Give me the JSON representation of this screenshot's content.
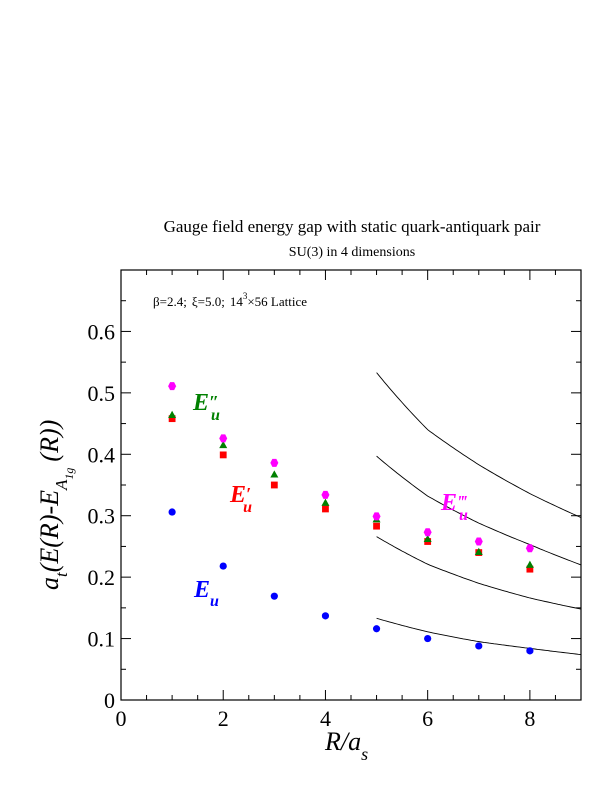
{
  "chart_data": {
    "type": "scatter",
    "title": "Gauge field energy gap with static quark-antiquark pair",
    "subtitle": "SU(3) in 4 dimensions",
    "annotation": {
      "beta": "β=2.4;",
      "xi": "ξ=5.0;",
      "lattice_base": "14",
      "lattice_exp": "3",
      "lattice_rest": "×56 Lattice"
    },
    "xlabel": {
      "main": "R/a",
      "sub": "s"
    },
    "ylabel": {
      "main": "a",
      "sub_t": "t",
      "mid": "(E(R)-E",
      "sub_a": "A",
      "sub_1g": "1g",
      "end": "(R))"
    },
    "xlim": [
      0,
      9
    ],
    "ylim": [
      0,
      0.7
    ],
    "x_ticks": [
      0,
      2,
      4,
      6,
      8
    ],
    "y_ticks": [
      0,
      0.1,
      0.2,
      0.3,
      0.4,
      0.5,
      0.6
    ],
    "x_tick_labels": [
      "0",
      "2",
      "4",
      "6",
      "8"
    ],
    "y_tick_labels": [
      "0",
      "0.1",
      "0.2",
      "0.3",
      "0.4",
      "0.5",
      "0.6"
    ],
    "grid": false,
    "series": [
      {
        "name": "E_u",
        "label_main": "E",
        "label_sub": "u",
        "label_prime": "",
        "color": "#0000ff",
        "marker": "circle",
        "x": [
          1,
          2,
          3,
          4,
          5,
          6,
          7,
          8
        ],
        "y": [
          0.306,
          0.218,
          0.169,
          0.137,
          0.116,
          0.1,
          0.088,
          0.08
        ]
      },
      {
        "name": "E'_u",
        "label_main": "E",
        "label_sub": "u",
        "label_prime": "′",
        "color": "#ff0000",
        "marker": "square",
        "x": [
          1,
          2,
          3,
          4,
          5,
          6,
          7,
          8
        ],
        "y": [
          0.458,
          0.399,
          0.35,
          0.311,
          0.283,
          0.258,
          0.24,
          0.213
        ]
      },
      {
        "name": "E''_u",
        "label_main": "E",
        "label_sub": "u",
        "label_prime": "″",
        "color": "#008000",
        "marker": "triangle",
        "x": [
          1,
          2,
          3,
          4,
          5,
          6,
          7,
          8
        ],
        "y": [
          0.464,
          0.415,
          0.367,
          0.321,
          0.294,
          0.262,
          0.241,
          0.22
        ]
      },
      {
        "name": "E'''_u",
        "label_main": "E",
        "label_sub": "u",
        "label_prime": "‴",
        "color": "#ff00ff",
        "marker": "diamond",
        "x": [
          1,
          2,
          3,
          4,
          5,
          6,
          7,
          8
        ],
        "y": [
          0.511,
          0.426,
          0.386,
          0.334,
          0.299,
          0.273,
          0.258,
          0.247
        ]
      }
    ],
    "curves": [
      {
        "x_start": 5,
        "x_end": 9,
        "a": 0.672,
        "b": 0.0
      },
      {
        "x_start": 5,
        "x_end": 9,
        "a": 0.565,
        "b": 0.0
      },
      {
        "x_start": 5,
        "x_end": 9,
        "a": 0.5,
        "b": 0.0
      },
      {
        "x_start": 5,
        "x_end": 9,
        "a": 0.663,
        "b": 0.0
      }
    ],
    "curve_values": [
      {
        "x": [
          5,
          6,
          7,
          8,
          9
        ],
        "y": [
          0.533,
          0.44,
          0.383,
          0.336,
          0.297
        ]
      },
      {
        "x": [
          5,
          6,
          7,
          8,
          9
        ],
        "y": [
          0.397,
          0.332,
          0.288,
          0.253,
          0.22
        ]
      },
      {
        "x": [
          5,
          6,
          7,
          8,
          9
        ],
        "y": [
          0.266,
          0.221,
          0.19,
          0.166,
          0.148
        ]
      },
      {
        "x": [
          5,
          6,
          7,
          8,
          9
        ],
        "y": [
          0.133,
          0.111,
          0.095,
          0.084,
          0.074
        ]
      }
    ]
  }
}
